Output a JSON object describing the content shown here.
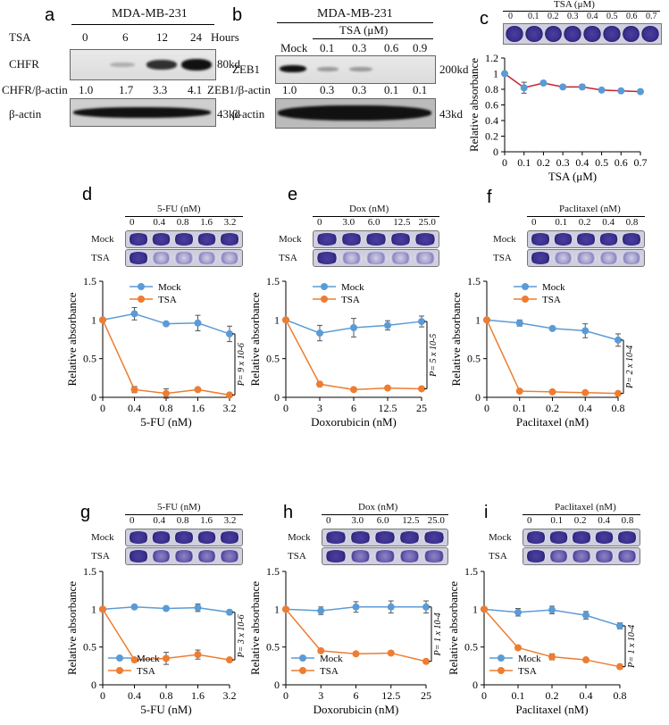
{
  "panel_letters": [
    "a",
    "b",
    "c",
    "d",
    "e",
    "f",
    "g",
    "h",
    "i"
  ],
  "panel_a": {
    "title": "MDA-MB-231",
    "treatment": "TSA",
    "doses": [
      "0",
      "6",
      "12",
      "24"
    ],
    "dose_unit": "Hours",
    "protein": "CHFR",
    "size": "80kd",
    "ratio_label": "CHFR/β-actin",
    "ratios": [
      "1.0",
      "1.7",
      "3.3",
      "4.1"
    ],
    "loading": "β-actin",
    "loading_size": "43kd",
    "band_intensity": [
      0.05,
      0.25,
      0.85,
      1.0
    ]
  },
  "panel_b": {
    "title": "MDA-MB-231",
    "treatment": "TSA (μM)",
    "doses": [
      "Mock",
      "0.1",
      "0.3",
      "0.6",
      "0.9"
    ],
    "protein": "ZEB1",
    "size": "200kd",
    "ratio_label": "ZEB1/β-actin",
    "ratios": [
      "1.0",
      "0.3",
      "0.3",
      "0.1",
      "0.1"
    ],
    "loading": "β-actin",
    "loading_size": "43kd",
    "band_intensity": [
      1.0,
      0.35,
      0.35,
      0.08,
      0.08
    ]
  },
  "panel_c_header": {
    "title": "TSA (μM)",
    "doses": [
      "0",
      "0.1",
      "0.2",
      "0.3",
      "0.4",
      "0.5",
      "0.6",
      "0.7"
    ]
  },
  "mini": {
    "d": {
      "title": "5-FU (nM)",
      "doses": [
        "0",
        "0.4",
        "0.8",
        "1.6",
        "3.2"
      ],
      "rows": [
        "Mock",
        "TSA"
      ]
    },
    "e": {
      "title": "Dox (nM)",
      "doses": [
        "0",
        "3.0",
        "6.0",
        "12.5",
        "25.0"
      ],
      "rows": [
        "Mock",
        "TSA"
      ]
    },
    "f": {
      "title": "Paclitaxel (nM)",
      "doses": [
        "0",
        "0.1",
        "0.2",
        "0.4",
        "0.8"
      ],
      "rows": [
        "Mock",
        "TSA"
      ]
    },
    "g": {
      "title": "5-FU (nM)",
      "doses": [
        "0",
        "0.4",
        "0.8",
        "1.6",
        "3.2"
      ],
      "rows": [
        "Mock",
        "TSA"
      ]
    },
    "h": {
      "title": "Dox (nM)",
      "doses": [
        "0",
        "3.0",
        "6.0",
        "12.5",
        "25.0"
      ],
      "rows": [
        "Mock",
        "TSA"
      ]
    },
    "i": {
      "title": "Paclitaxel (nM)",
      "doses": [
        "0",
        "0.1",
        "0.2",
        "0.4",
        "0.8"
      ],
      "rows": [
        "Mock",
        "TSA"
      ]
    }
  },
  "chart_data": [
    {
      "id": "c",
      "type": "line",
      "xlabel": "TSA (μM)",
      "ylabel": "Relative absorbance",
      "categories": [
        "0",
        "0.1",
        "0.2",
        "0.3",
        "0.4",
        "0.5",
        "0.6",
        "0.7"
      ],
      "ylim": [
        0,
        1.2
      ],
      "yticks": [
        "0",
        "0.2",
        "0.4",
        "0.6",
        "0.8",
        "1",
        "1.2"
      ],
      "series": [
        {
          "color": "#c0242c",
          "marker": "#5b9bd5",
          "values": [
            1.0,
            0.82,
            0.88,
            0.83,
            0.83,
            0.79,
            0.78,
            0.77
          ],
          "err": [
            0,
            0.07,
            0.02,
            0.02,
            0.03,
            0.01,
            0.01,
            0.01
          ]
        }
      ]
    },
    {
      "id": "d",
      "type": "line",
      "xlabel": "5-FU (nM)",
      "ylabel": "Relative absorbance",
      "categories": [
        "0",
        "0.4",
        "0.8",
        "1.6",
        "3.2"
      ],
      "ylim": [
        0,
        1.5
      ],
      "yticks": [
        "0",
        "0.5",
        "1",
        "1.5"
      ],
      "pvalue": "P= 9 x 10-6",
      "legend": "top-center",
      "series": [
        {
          "name": "Mock",
          "color": "#5b9bd5",
          "values": [
            1.0,
            1.08,
            0.95,
            0.96,
            0.82
          ],
          "err": [
            0,
            0.08,
            0,
            0.1,
            0.1
          ]
        },
        {
          "name": "TSA",
          "color": "#ed7d31",
          "values": [
            1.0,
            0.1,
            0.05,
            0.1,
            0.03
          ],
          "err": [
            0,
            0.04,
            0.06,
            0,
            0.02
          ]
        }
      ]
    },
    {
      "id": "e",
      "type": "line",
      "xlabel": "Doxorubicin (nM)",
      "ylabel": "Relative absorbance",
      "categories": [
        "0",
        "3",
        "6",
        "12.5",
        "25"
      ],
      "ylim": [
        0,
        1.5
      ],
      "yticks": [
        "0",
        "0.5",
        "1",
        "1.5"
      ],
      "pvalue": "P= 5 x 10-5",
      "legend": "top-center",
      "series": [
        {
          "name": "Mock",
          "color": "#5b9bd5",
          "values": [
            1.0,
            0.83,
            0.9,
            0.93,
            0.98
          ],
          "err": [
            0,
            0.1,
            0.12,
            0.06,
            0.07
          ]
        },
        {
          "name": "TSA",
          "color": "#ed7d31",
          "values": [
            1.0,
            0.17,
            0.1,
            0.12,
            0.11
          ],
          "err": [
            0,
            0.03,
            0,
            0,
            0
          ]
        }
      ]
    },
    {
      "id": "f",
      "type": "line",
      "xlabel": "Paclitaxel (nM)",
      "ylabel": "Relative absorbance",
      "categories": [
        "0",
        "0.1",
        "0.2",
        "0.4",
        "0.8"
      ],
      "ylim": [
        0,
        1.5
      ],
      "yticks": [
        "0",
        "0.5",
        "1",
        "1.5"
      ],
      "pvalue": "P= 2 x 10-4",
      "legend": "top-center",
      "series": [
        {
          "name": "Mock",
          "color": "#5b9bd5",
          "values": [
            1.0,
            0.96,
            0.89,
            0.86,
            0.74
          ],
          "err": [
            0,
            0.04,
            0,
            0.09,
            0.08
          ]
        },
        {
          "name": "TSA",
          "color": "#ed7d31",
          "values": [
            1.0,
            0.08,
            0.07,
            0.06,
            0.05
          ],
          "err": [
            0,
            0,
            0,
            0,
            0
          ]
        }
      ]
    },
    {
      "id": "g",
      "type": "line",
      "xlabel": "5-FU (nM)",
      "ylabel": "Relative absorbance",
      "categories": [
        "0",
        "0.4",
        "0.8",
        "1.6",
        "3.2"
      ],
      "ylim": [
        0,
        1.5
      ],
      "yticks": [
        "0",
        "0.5",
        "1",
        "1.5"
      ],
      "pvalue": "P= 3 x 10-6",
      "legend": "bottom-left",
      "series": [
        {
          "name": "Mock",
          "color": "#5b9bd5",
          "values": [
            1.0,
            1.03,
            1.01,
            1.02,
            0.96
          ],
          "err": [
            0,
            0,
            0,
            0.05,
            0.03
          ]
        },
        {
          "name": "TSA",
          "color": "#ed7d31",
          "values": [
            1.0,
            0.33,
            0.35,
            0.4,
            0.33
          ],
          "err": [
            0,
            0,
            0.08,
            0.06,
            0
          ]
        }
      ]
    },
    {
      "id": "h",
      "type": "line",
      "xlabel": "Doxorubicin (nM)",
      "ylabel": "Relative absorbance",
      "categories": [
        "0",
        "3",
        "6",
        "12.5",
        "25"
      ],
      "ylim": [
        0,
        1.5
      ],
      "yticks": [
        "0",
        "0.5",
        "1",
        "1.5"
      ],
      "pvalue": "P= 1 x 10-4",
      "legend": "bottom-left",
      "series": [
        {
          "name": "Mock",
          "color": "#5b9bd5",
          "values": [
            1.0,
            0.98,
            1.03,
            1.03,
            1.03
          ],
          "err": [
            0,
            0.05,
            0.07,
            0.08,
            0.08
          ]
        },
        {
          "name": "TSA",
          "color": "#ed7d31",
          "values": [
            1.0,
            0.45,
            0.41,
            0.42,
            0.31
          ],
          "err": [
            0,
            0.02,
            0,
            0,
            0
          ]
        }
      ]
    },
    {
      "id": "i",
      "type": "line",
      "xlabel": "Paclitaxel (nM)",
      "ylabel": "Relative absorbance",
      "categories": [
        "0",
        "0.1",
        "0.2",
        "0.4",
        "0.8"
      ],
      "ylim": [
        0,
        1.5
      ],
      "yticks": [
        "0",
        "0.5",
        "1",
        "1.5"
      ],
      "pvalue": "P= 1 x 10-4",
      "legend": "bottom-left",
      "series": [
        {
          "name": "Mock",
          "color": "#5b9bd5",
          "values": [
            1.0,
            0.96,
            0.99,
            0.92,
            0.78
          ],
          "err": [
            0,
            0.05,
            0.05,
            0.05,
            0.04
          ]
        },
        {
          "name": "TSA",
          "color": "#ed7d31",
          "values": [
            1.0,
            0.49,
            0.37,
            0.33,
            0.24
          ],
          "err": [
            0,
            0,
            0.04,
            0,
            0.03
          ]
        }
      ]
    }
  ]
}
